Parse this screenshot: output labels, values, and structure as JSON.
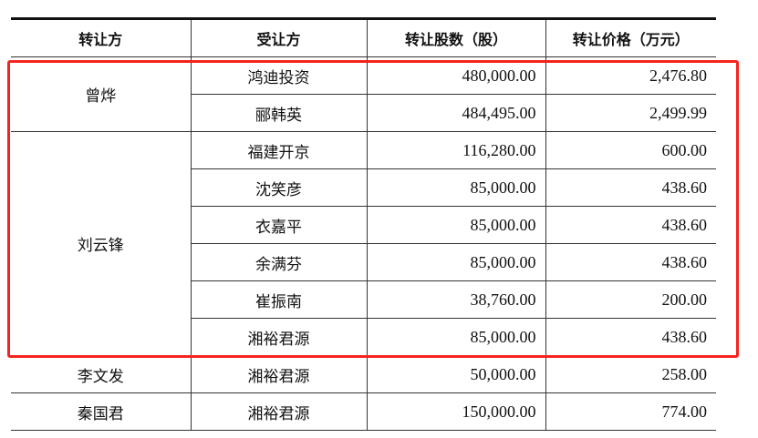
{
  "table": {
    "headers": [
      "转让方",
      "受让方",
      "转让股数（股）",
      "转让价格（万元）"
    ],
    "groups": [
      {
        "transferor": "曾烨",
        "rows": [
          {
            "transferee": "鸿迪投资",
            "shares": "480,000.00",
            "price": "2,476.80"
          },
          {
            "transferee": "郦韩英",
            "shares": "484,495.00",
            "price": "2,499.99"
          }
        ]
      },
      {
        "transferor": "刘云锋",
        "rows": [
          {
            "transferee": "福建开京",
            "shares": "116,280.00",
            "price": "600.00"
          },
          {
            "transferee": "沈笑彦",
            "shares": "85,000.00",
            "price": "438.60"
          },
          {
            "transferee": "衣嘉平",
            "shares": "85,000.00",
            "price": "438.60"
          },
          {
            "transferee": "余满芬",
            "shares": "85,000.00",
            "price": "438.60"
          },
          {
            "transferee": "崔振南",
            "shares": "38,760.00",
            "price": "200.00"
          },
          {
            "transferee": "湘裕君源",
            "shares": "85,000.00",
            "price": "438.60"
          }
        ]
      },
      {
        "transferor": "李文发",
        "rows": [
          {
            "transferee": "湘裕君源",
            "shares": "50,000.00",
            "price": "258.00"
          }
        ]
      },
      {
        "transferor": "秦国君",
        "rows": [
          {
            "transferee": "湘裕君源",
            "shares": "150,000.00",
            "price": "774.00"
          }
        ]
      }
    ]
  },
  "highlight_color": "#f5231f"
}
